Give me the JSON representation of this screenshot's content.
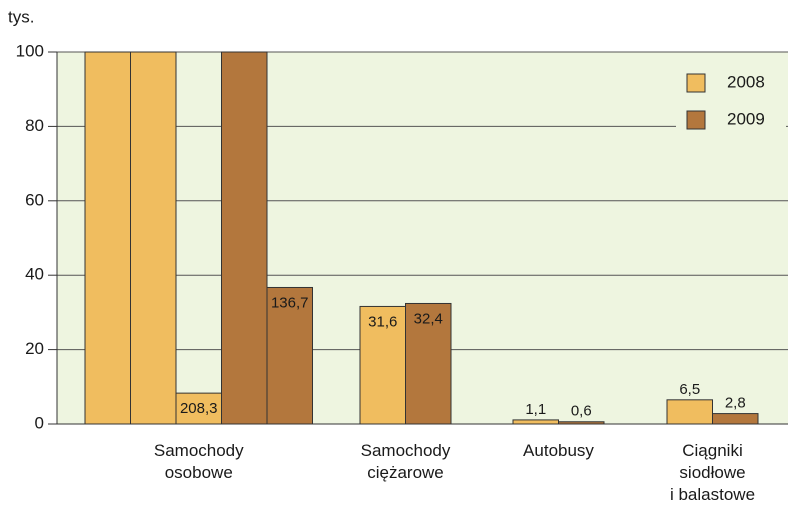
{
  "chart_data": {
    "type": "bar",
    "y_unit": "tys.",
    "categories": [
      "Samochody\nosobowe",
      "Samochody\nciężarowe",
      "Autobusy",
      "Ciągniki\nsiodłowe\ni balastowe"
    ],
    "series": [
      {
        "name": "2008",
        "color": "#f0bd5f",
        "values": [
          208.3,
          31.6,
          1.1,
          6.5
        ],
        "value_labels": [
          "208,3",
          "31,6",
          "1,1",
          "6,5"
        ]
      },
      {
        "name": "2009",
        "color": "#b3773d",
        "values": [
          136.7,
          32.4,
          0.6,
          2.8
        ],
        "value_labels": [
          "136,7",
          "32,4",
          "0,6",
          "2,8"
        ]
      }
    ],
    "ylim": [
      0,
      100
    ],
    "yticks": [
      0,
      20,
      40,
      60,
      80,
      100
    ],
    "grid": true,
    "legend": "top-right"
  }
}
